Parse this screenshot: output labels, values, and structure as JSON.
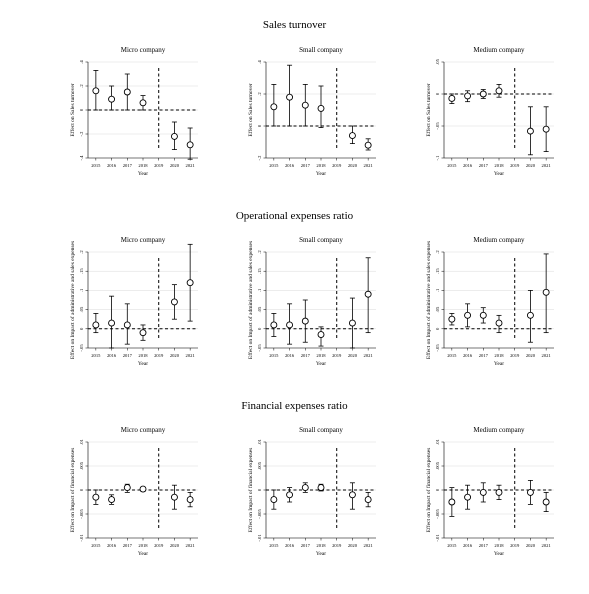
{
  "figure": {
    "sections": [
      {
        "title": "Sales turnover",
        "ylabel": "Effect on Sales turnover",
        "xlabel": "Year",
        "panels": [
          {
            "title": "Micro company",
            "chart_data": {
              "type": "scatter",
              "x": [
                "2015",
                "2016",
                "2017",
                "2018",
                "2019",
                "2020",
                "2021"
              ],
              "estimates": [
                0.16,
                0.09,
                0.15,
                0.06,
                0,
                -0.22,
                -0.29
              ],
              "ci_low": [
                0.0,
                0.0,
                0.0,
                0.0,
                null,
                -0.33,
                -0.41
              ],
              "ci_high": [
                0.33,
                0.2,
                0.3,
                0.12,
                null,
                -0.1,
                -0.15
              ],
              "ylim": [
                -0.4,
                0.4
              ],
              "yticks": [
                ".4",
                ".2",
                "0",
                "-.2",
                "-.4"
              ],
              "yticks_values": [
                0.4,
                0.2,
                0,
                -0.2,
                -0.4
              ],
              "reference_line": 0,
              "vertical_line_year": "2019",
              "grid": true
            }
          },
          {
            "title": "Small company",
            "chart_data": {
              "type": "scatter",
              "x": [
                "2015",
                "2016",
                "2017",
                "2018",
                "2019",
                "2020",
                "2021"
              ],
              "estimates": [
                0.12,
                0.18,
                0.13,
                0.11,
                0,
                -0.06,
                -0.12
              ],
              "ci_low": [
                0.0,
                0.0,
                0.0,
                -0.01,
                null,
                -0.11,
                -0.15
              ],
              "ci_high": [
                0.26,
                0.38,
                0.26,
                0.25,
                null,
                0.0,
                -0.08
              ],
              "ylim": [
                -0.2,
                0.4
              ],
              "yticks": [
                ".4",
                ".2",
                "0",
                "-.2"
              ],
              "yticks_values": [
                0.4,
                0.2,
                0,
                -0.2
              ],
              "reference_line": 0,
              "vertical_line_year": "2019",
              "grid": true
            }
          },
          {
            "title": "Medium company",
            "chart_data": {
              "type": "scatter",
              "x": [
                "2015",
                "2016",
                "2017",
                "2018",
                "2019",
                "2020",
                "2021"
              ],
              "estimates": [
                -0.007,
                -0.003,
                0.0,
                0.005,
                0,
                -0.058,
                -0.055
              ],
              "ci_low": [
                -0.015,
                -0.012,
                -0.007,
                -0.005,
                null,
                -0.095,
                -0.09
              ],
              "ci_high": [
                0.0,
                0.005,
                0.007,
                0.015,
                null,
                -0.02,
                -0.02
              ],
              "ylim": [
                -0.1,
                0.05
              ],
              "yticks": [
                ".05",
                "0",
                "-.05",
                "-.1"
              ],
              "yticks_values": [
                0.05,
                0,
                -0.05,
                -0.1
              ],
              "reference_line": 0,
              "vertical_line_year": "2019",
              "grid": true
            }
          }
        ]
      },
      {
        "title": "Operational expenses ratio",
        "ylabel": "Effect on Impact of administrative and sales expenses",
        "xlabel": "Year",
        "panels": [
          {
            "title": "Micro company",
            "chart_data": {
              "type": "scatter",
              "x": [
                "2015",
                "2016",
                "2017",
                "2018",
                "2019",
                "2020",
                "2021"
              ],
              "estimates": [
                0.01,
                0.015,
                0.01,
                -0.01,
                0,
                0.07,
                0.12
              ],
              "ci_low": [
                -0.01,
                -0.05,
                -0.04,
                -0.03,
                null,
                0.025,
                0.02
              ],
              "ci_high": [
                0.04,
                0.085,
                0.065,
                0.01,
                null,
                0.115,
                0.22
              ],
              "ylim": [
                -0.05,
                0.2
              ],
              "yticks": [
                ".2",
                ".15",
                ".1",
                ".05",
                "0",
                "-.05"
              ],
              "yticks_values": [
                0.2,
                0.15,
                0.1,
                0.05,
                0,
                -0.05
              ],
              "reference_line": 0,
              "vertical_line_year": "2019",
              "grid": true
            }
          },
          {
            "title": "Small company",
            "chart_data": {
              "type": "scatter",
              "x": [
                "2015",
                "2016",
                "2017",
                "2018",
                "2019",
                "2020",
                "2021"
              ],
              "estimates": [
                0.01,
                0.01,
                0.02,
                -0.015,
                0,
                0.015,
                0.09
              ],
              "ci_low": [
                -0.02,
                -0.04,
                -0.035,
                -0.045,
                null,
                -0.05,
                -0.01
              ],
              "ci_high": [
                0.04,
                0.065,
                0.075,
                0.005,
                null,
                0.08,
                0.185
              ],
              "ylim": [
                -0.05,
                0.2
              ],
              "yticks": [
                ".2",
                ".15",
                ".1",
                ".05",
                "0",
                "-.05"
              ],
              "yticks_values": [
                0.2,
                0.15,
                0.1,
                0.05,
                0,
                -0.05
              ],
              "reference_line": 0,
              "vertical_line_year": "2019",
              "grid": true
            }
          },
          {
            "title": "Medium company",
            "chart_data": {
              "type": "scatter",
              "x": [
                "2015",
                "2016",
                "2017",
                "2018",
                "2019",
                "2020",
                "2021"
              ],
              "estimates": [
                0.025,
                0.035,
                0.035,
                0.015,
                0,
                0.035,
                0.095
              ],
              "ci_low": [
                0.01,
                0.005,
                0.015,
                -0.01,
                null,
                -0.035,
                -0.01
              ],
              "ci_high": [
                0.04,
                0.065,
                0.055,
                0.035,
                null,
                0.1,
                0.195
              ],
              "ylim": [
                -0.05,
                0.2
              ],
              "yticks": [
                ".2",
                ".15",
                ".1",
                ".05",
                "0",
                "-.05"
              ],
              "yticks_values": [
                0.2,
                0.15,
                0.1,
                0.05,
                0,
                -0.05
              ],
              "reference_line": 0,
              "vertical_line_year": "2019",
              "grid": true
            }
          }
        ]
      },
      {
        "title": "Financial expenses ratio",
        "ylabel": "Effect on Impact of financial expenses",
        "xlabel": "Year",
        "panels": [
          {
            "title": "Micro company",
            "chart_data": {
              "type": "scatter",
              "x": [
                "2015",
                "2016",
                "2017",
                "2018",
                "2019",
                "2020",
                "2021"
              ],
              "estimates": [
                -0.0015,
                -0.002,
                0.0005,
                0.0002,
                0,
                -0.0015,
                -0.002
              ],
              "ci_low": [
                -0.003,
                -0.003,
                -0.0005,
                -0.0003,
                null,
                -0.004,
                -0.0035
              ],
              "ci_high": [
                0.0,
                -0.001,
                0.0012,
                0.0006,
                null,
                0.001,
                -0.0005
              ],
              "ylim": [
                -0.01,
                0.01
              ],
              "yticks": [
                ".01",
                ".005",
                "0",
                "-.005",
                "-.01"
              ],
              "yticks_values": [
                0.01,
                0.005,
                0,
                -0.005,
                -0.01
              ],
              "reference_line": 0,
              "vertical_line_year": "2019",
              "grid": true
            }
          },
          {
            "title": "Small company",
            "chart_data": {
              "type": "scatter",
              "x": [
                "2015",
                "2016",
                "2017",
                "2018",
                "2019",
                "2020",
                "2021"
              ],
              "estimates": [
                -0.002,
                -0.001,
                0.0005,
                0.0005,
                0,
                -0.001,
                -0.002
              ],
              "ci_low": [
                -0.004,
                -0.0025,
                -0.0005,
                -0.0002,
                null,
                -0.004,
                -0.0035
              ],
              "ci_high": [
                0.0,
                0.0005,
                0.0015,
                0.0012,
                null,
                0.0015,
                -0.0005
              ],
              "ylim": [
                -0.01,
                0.01
              ],
              "yticks": [
                ".01",
                ".005",
                "0",
                "-.005",
                "-.01"
              ],
              "yticks_values": [
                0.01,
                0.005,
                0,
                -0.005,
                -0.01
              ],
              "reference_line": 0,
              "vertical_line_year": "2019",
              "grid": true
            }
          },
          {
            "title": "Medium company",
            "chart_data": {
              "type": "scatter",
              "x": [
                "2015",
                "2016",
                "2017",
                "2018",
                "2019",
                "2020",
                "2021"
              ],
              "estimates": [
                -0.0025,
                -0.0015,
                -0.0005,
                -0.0005,
                0,
                -0.0005,
                -0.0025
              ],
              "ci_low": [
                -0.0055,
                -0.004,
                -0.0025,
                -0.002,
                null,
                -0.003,
                -0.0045
              ],
              "ci_high": [
                0.0005,
                0.001,
                0.0015,
                0.001,
                null,
                0.002,
                -0.0005
              ],
              "ylim": [
                -0.01,
                0.01
              ],
              "yticks": [
                ".01",
                ".005",
                "0",
                "-.005",
                "-.01"
              ],
              "yticks_values": [
                0.01,
                0.005,
                0,
                -0.005,
                -0.01
              ],
              "reference_line": 0,
              "vertical_line_year": "2019",
              "grid": true
            }
          }
        ]
      }
    ]
  }
}
